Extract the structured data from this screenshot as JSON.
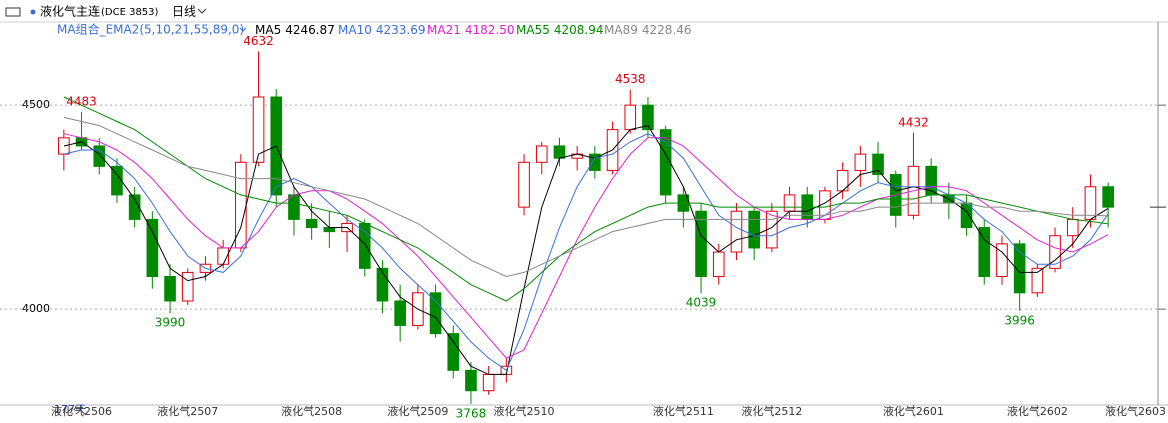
{
  "header": {
    "symbol": "液化气主连",
    "code": "(DCE 3853)",
    "period": "日线"
  },
  "chart_data": {
    "type": "candlestick",
    "indicator": "MA组合_EMA2(5,10,21,55,89,0)",
    "day_count": "177天",
    "categories": [
      null,
      "液化气2506",
      null,
      null,
      null,
      null,
      null,
      "液化气2507",
      null,
      null,
      null,
      null,
      null,
      null,
      "液化气2508",
      null,
      null,
      null,
      null,
      null,
      "液化气2509",
      null,
      null,
      null,
      null,
      null,
      "液化气2510",
      null,
      null,
      null,
      null,
      null,
      null,
      null,
      null,
      "液化气2511",
      null,
      null,
      null,
      null,
      "液化气2512",
      null,
      null,
      null,
      null,
      null,
      null,
      null,
      "液化气2601",
      null,
      null,
      null,
      null,
      null,
      null,
      "液化气2602",
      null,
      null,
      null,
      "液化气2603"
    ],
    "open": [
      4380,
      4420,
      4400,
      4350,
      4280,
      4220,
      4080,
      4020,
      4090,
      4110,
      4150,
      4360,
      4520,
      4280,
      4220,
      4200,
      4190,
      4210,
      4100,
      4020,
      3960,
      4040,
      3940,
      3850,
      3800,
      3840,
      4250,
      4360,
      4400,
      4370,
      4380,
      4340,
      4440,
      4500,
      4440,
      4280,
      4240,
      4080,
      4140,
      4240,
      4150,
      4240,
      4280,
      4220,
      4290,
      4340,
      4380,
      4330,
      4230,
      4350,
      4280,
      4260,
      4200,
      4080,
      4160,
      4040,
      4100,
      4180,
      4220,
      4300
    ],
    "high": [
      4440,
      4483,
      4420,
      4370,
      4300,
      4240,
      4110,
      4100,
      4130,
      4170,
      4380,
      4632,
      4540,
      4300,
      4260,
      4240,
      4230,
      4220,
      4120,
      4060,
      4060,
      4060,
      3960,
      3870,
      3860,
      3880,
      4380,
      4410,
      4420,
      4400,
      4400,
      4460,
      4538,
      4520,
      4450,
      4300,
      4260,
      4160,
      4260,
      4250,
      4260,
      4300,
      4300,
      4300,
      4360,
      4400,
      4410,
      4340,
      4432,
      4370,
      4310,
      4280,
      4220,
      4180,
      4170,
      4110,
      4200,
      4250,
      4330,
      4310
    ],
    "low": [
      4340,
      4390,
      4330,
      4260,
      4200,
      4050,
      3990,
      4010,
      4070,
      4100,
      4140,
      4350,
      4250,
      4180,
      4170,
      4150,
      4140,
      4080,
      3990,
      3920,
      3950,
      3930,
      3830,
      3768,
      3790,
      3820,
      4230,
      4330,
      4350,
      4340,
      4320,
      4330,
      4430,
      4420,
      4260,
      4200,
      4039,
      4060,
      4120,
      4120,
      4140,
      4220,
      4200,
      4210,
      4270,
      4300,
      4310,
      4200,
      4220,
      4260,
      4220,
      4180,
      4060,
      4060,
      3996,
      4030,
      4090,
      4150,
      4200,
      4200
    ],
    "close": [
      4420,
      4400,
      4350,
      4280,
      4220,
      4080,
      4020,
      4090,
      4110,
      4150,
      4360,
      4520,
      4280,
      4220,
      4200,
      4190,
      4210,
      4100,
      4020,
      3960,
      4040,
      3940,
      3850,
      3800,
      3840,
      3860,
      4360,
      4400,
      4370,
      4380,
      4340,
      4440,
      4500,
      4440,
      4280,
      4240,
      4080,
      4140,
      4240,
      4150,
      4240,
      4280,
      4220,
      4290,
      4340,
      4380,
      4330,
      4230,
      4350,
      4280,
      4260,
      4200,
      4080,
      4160,
      4040,
      4100,
      4180,
      4220,
      4300,
      4250
    ],
    "up_color": "#e0000e",
    "down_color": "#008a00",
    "series": [
      {
        "name": "MA5",
        "current": "4246.87",
        "color": "#000000",
        "values": [
          4400,
          4410,
          4380,
          4330,
          4270,
          4190,
          4100,
          4070,
          4080,
          4110,
          4200,
          4380,
          4400,
          4300,
          4240,
          4200,
          4200,
          4160,
          4090,
          4030,
          4000,
          3980,
          3920,
          3860,
          3840,
          3840,
          4050,
          4250,
          4370,
          4380,
          4370,
          4390,
          4440,
          4450,
          4380,
          4300,
          4180,
          4140,
          4170,
          4180,
          4200,
          4240,
          4240,
          4260,
          4290,
          4330,
          4340,
          4290,
          4300,
          4290,
          4270,
          4240,
          4170,
          4140,
          4090,
          4090,
          4120,
          4160,
          4220,
          4246.87
        ]
      },
      {
        "name": "MA10",
        "current": "4233.69",
        "color": "#3a6fd8",
        "values": [
          4380,
          4390,
          4390,
          4360,
          4320,
          4260,
          4190,
          4130,
          4100,
          4090,
          4130,
          4220,
          4300,
          4320,
          4300,
          4260,
          4220,
          4190,
          4150,
          4100,
          4060,
          4020,
          3970,
          3920,
          3880,
          3850,
          3950,
          4080,
          4200,
          4300,
          4370,
          4380,
          4410,
          4430,
          4410,
          4370,
          4300,
          4230,
          4200,
          4180,
          4180,
          4200,
          4210,
          4230,
          4260,
          4290,
          4310,
          4300,
          4300,
          4300,
          4280,
          4260,
          4220,
          4190,
          4140,
          4110,
          4110,
          4130,
          4170,
          4233.69
        ]
      },
      {
        "name": "MA21",
        "current": "4182.50",
        "color": "#e020d0",
        "values": [
          4430,
          4420,
          4410,
          4390,
          4360,
          4320,
          4270,
          4220,
          4180,
          4150,
          4150,
          4190,
          4250,
          4280,
          4290,
          4290,
          4270,
          4240,
          4210,
          4170,
          4130,
          4080,
          4030,
          3980,
          3930,
          3880,
          3900,
          3990,
          4080,
          4170,
          4250,
          4320,
          4380,
          4420,
          4420,
          4400,
          4360,
          4320,
          4280,
          4250,
          4230,
          4220,
          4220,
          4220,
          4230,
          4250,
          4270,
          4280,
          4290,
          4300,
          4300,
          4290,
          4260,
          4230,
          4200,
          4170,
          4150,
          4140,
          4160,
          4182.5
        ]
      },
      {
        "name": "MA55",
        "current": "4208.94",
        "color": "#008a00",
        "values": [
          4520,
          4500,
          4480,
          4460,
          4440,
          4410,
          4380,
          4350,
          4320,
          4300,
          4280,
          4270,
          4260,
          4260,
          4250,
          4240,
          4230,
          4210,
          4190,
          4170,
          4150,
          4120,
          4090,
          4060,
          4040,
          4020,
          4050,
          4090,
          4130,
          4160,
          4190,
          4210,
          4230,
          4250,
          4260,
          4260,
          4260,
          4250,
          4250,
          4250,
          4250,
          4250,
          4250,
          4250,
          4260,
          4260,
          4270,
          4270,
          4270,
          4280,
          4280,
          4280,
          4270,
          4260,
          4250,
          4240,
          4230,
          4220,
          4215,
          4208.94
        ]
      },
      {
        "name": "MA89",
        "current": "4228.46",
        "color": "#888888",
        "values": [
          4470,
          4460,
          4450,
          4430,
          4410,
          4390,
          4370,
          4350,
          4340,
          4330,
          4320,
          4320,
          4320,
          4310,
          4300,
          4290,
          4280,
          4270,
          4250,
          4230,
          4210,
          4180,
          4150,
          4120,
          4100,
          4080,
          4090,
          4110,
          4130,
          4150,
          4170,
          4190,
          4200,
          4210,
          4220,
          4220,
          4220,
          4220,
          4220,
          4220,
          4220,
          4230,
          4230,
          4230,
          4240,
          4240,
          4250,
          4250,
          4260,
          4260,
          4260,
          4260,
          4250,
          4250,
          4240,
          4240,
          4235,
          4230,
          4230,
          4228.46
        ]
      }
    ],
    "ylim": [
      3765,
      4672
    ],
    "yticks": [
      4000,
      4500
    ],
    "grid": true
  }
}
